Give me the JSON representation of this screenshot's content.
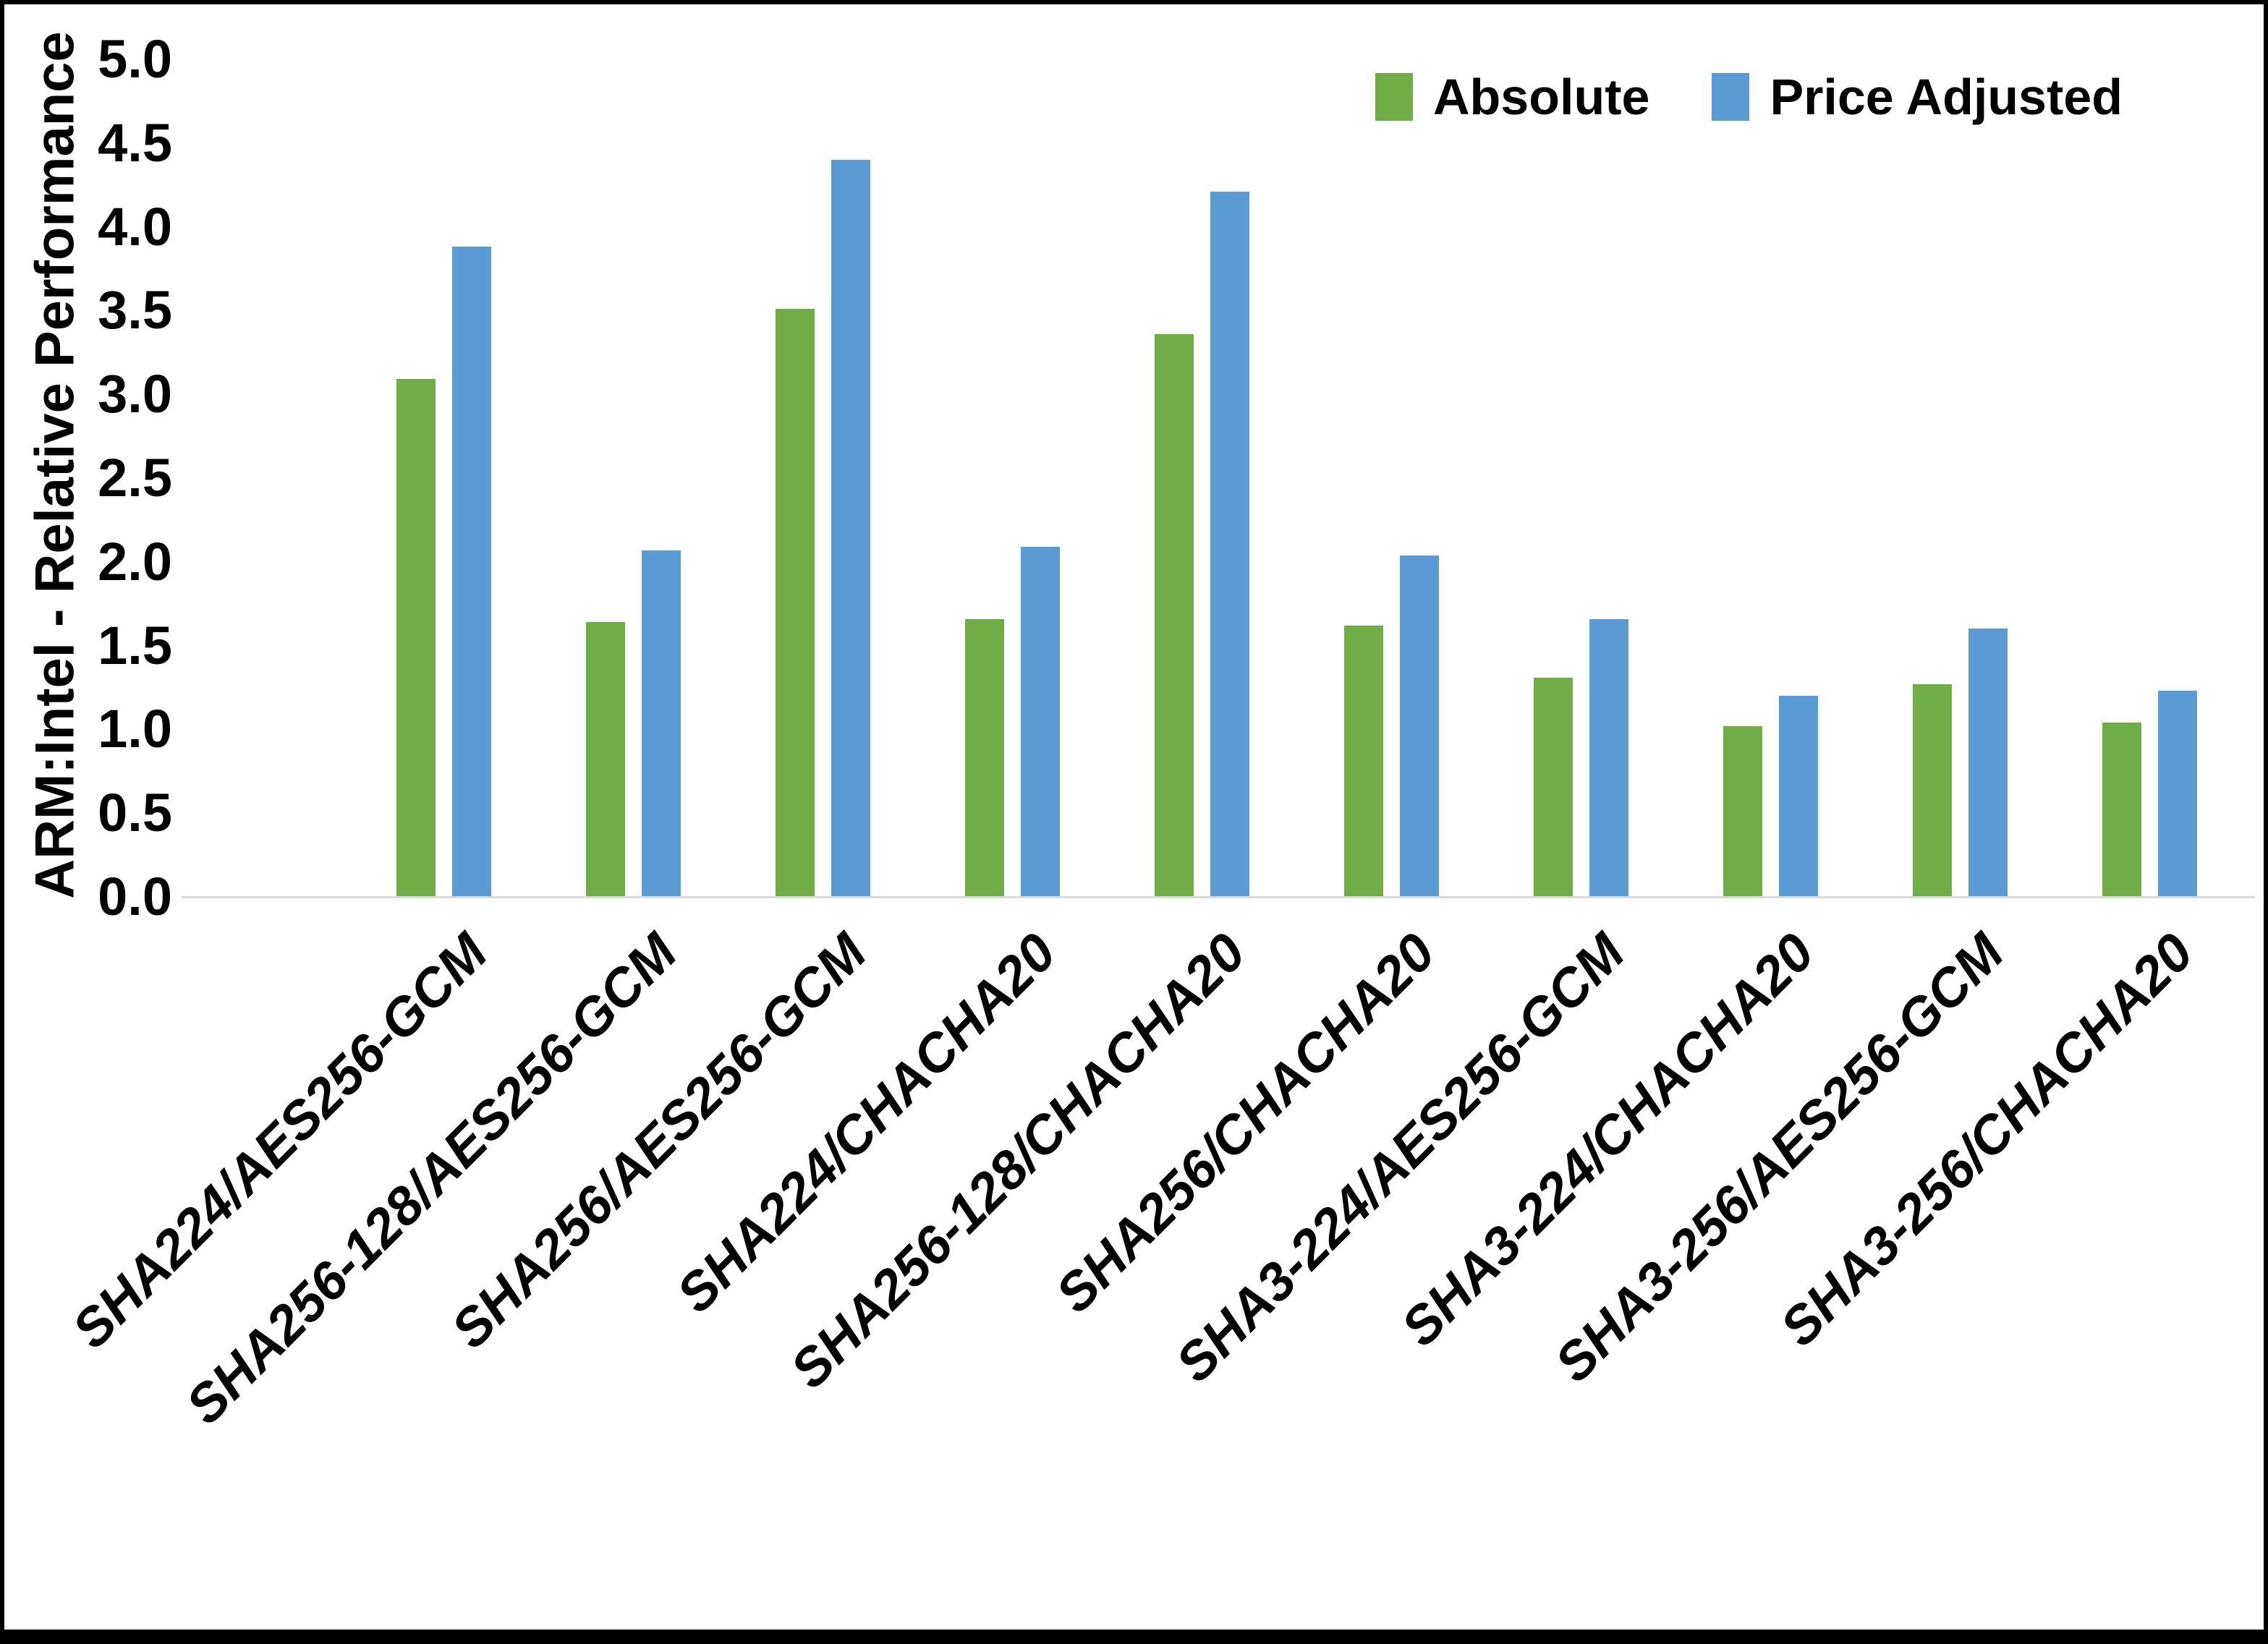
{
  "chart_data": {
    "type": "bar",
    "ylabel": "ARM:Intel - Relative Performance",
    "xlabel": "",
    "ylim": [
      0.0,
      5.0
    ],
    "ytick_step": 0.5,
    "y_ticks": [
      "5.0",
      "4.5",
      "4.0",
      "3.5",
      "3.0",
      "2.5",
      "2.0",
      "1.5",
      "1.0",
      "0.5",
      "0.0"
    ],
    "grid": false,
    "legend_position": "top-right",
    "categories": [
      "SHA224/AES256-GCM",
      "SHA256-128/AES256-GCM",
      "SHA256/AES256-GCM",
      "SHA224/CHACHA20",
      "SHA256-128/CHACHA20",
      "SHA256/CHACHA20",
      "SHA3-224/AES256-GCM",
      "SHA3-224/CHACHA20",
      "SHA3-256/AES256-GCM",
      "SHA3-256/CHACHA20"
    ],
    "series": [
      {
        "name": "Absolute",
        "color": "#70AD47",
        "values": [
          3.09,
          1.64,
          3.51,
          1.66,
          3.36,
          1.62,
          1.31,
          1.02,
          1.27,
          1.04
        ]
      },
      {
        "name": "Price Adjusted",
        "color": "#5B9BD5",
        "values": [
          3.88,
          2.07,
          4.4,
          2.09,
          4.21,
          2.04,
          1.66,
          1.2,
          1.6,
          1.23
        ]
      }
    ],
    "colors": {
      "axis_line": "#D9D9D9",
      "text": "#000000"
    }
  }
}
